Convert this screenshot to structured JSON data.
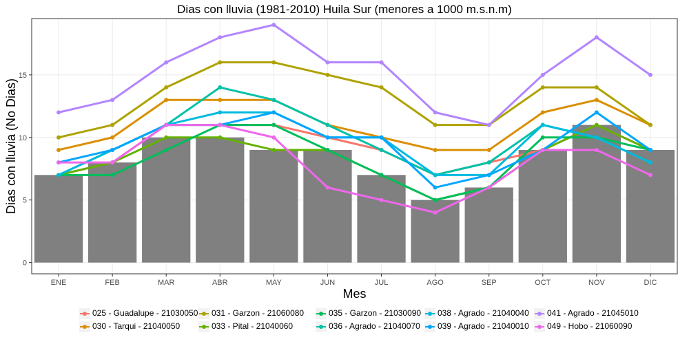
{
  "chart_data": {
    "type": "bar",
    "title": "Dias con lluvia (1981-2010) Huila Sur (menores a 1000 m.s.n.m)",
    "xlabel": "Mes",
    "ylabel": "Dias con lluvia (No Dias)",
    "categories": [
      "ENE",
      "FEB",
      "MAR",
      "ABR",
      "MAY",
      "JUN",
      "JUL",
      "AGO",
      "SEP",
      "OCT",
      "NOV",
      "DIC"
    ],
    "yticks": [
      0,
      5,
      10,
      15
    ],
    "ylim": [
      -0.9,
      19.5
    ],
    "grid": true,
    "legend_position": "bottom",
    "bars": {
      "color": "#808080",
      "values": [
        7,
        8,
        10,
        10,
        9,
        9,
        7,
        5,
        6,
        9,
        11,
        9
      ]
    },
    "series": [
      {
        "name": "025 - Guadalupe - 21030050",
        "color": "#F8766D",
        "values": [
          7,
          8,
          11,
          11,
          11,
          10,
          9,
          7,
          8,
          9,
          11,
          9
        ]
      },
      {
        "name": "030 - Tarqui - 21040050",
        "color": "#DB8E00",
        "values": [
          9,
          10,
          13,
          13,
          13,
          11,
          10,
          9,
          9,
          12,
          13,
          11
        ]
      },
      {
        "name": "031 - Garzon - 21060080",
        "color": "#AEA200",
        "values": [
          10,
          11,
          14,
          16,
          16,
          15,
          14,
          11,
          11,
          14,
          14,
          11
        ]
      },
      {
        "name": "033 - Pital - 21040060",
        "color": "#64B200",
        "values": [
          7,
          8,
          10,
          10,
          9,
          9,
          7,
          5,
          6,
          9,
          11,
          9
        ]
      },
      {
        "name": "035 - Garzon - 21030090",
        "color": "#00BD5C",
        "values": [
          7,
          7,
          9,
          11,
          11,
          9,
          7,
          5,
          6,
          10,
          10,
          9
        ]
      },
      {
        "name": "036 - Agrado - 21040070",
        "color": "#00C1A7",
        "values": [
          7,
          9,
          11,
          14,
          13,
          11,
          9,
          7,
          8,
          11,
          10,
          8
        ]
      },
      {
        "name": "038 - Agrado - 21040040",
        "color": "#00BADE",
        "values": [
          7,
          9,
          11,
          12,
          12,
          10,
          10,
          7,
          7,
          11,
          10,
          8
        ]
      },
      {
        "name": "039 - Agrado - 21040010",
        "color": "#00A6FF",
        "values": [
          8,
          9,
          11,
          11,
          12,
          10,
          10,
          6,
          7,
          9,
          12,
          9
        ]
      },
      {
        "name": "041 - Agrado - 21045010",
        "color": "#B385FF",
        "values": [
          12,
          13,
          16,
          18,
          19,
          16,
          16,
          12,
          11,
          15,
          18,
          15
        ]
      },
      {
        "name": "049 - Hobo - 21060090",
        "color": "#EF67EB",
        "values": [
          8,
          8,
          11,
          11,
          10,
          6,
          5,
          4,
          6,
          9,
          9,
          7
        ]
      }
    ]
  }
}
